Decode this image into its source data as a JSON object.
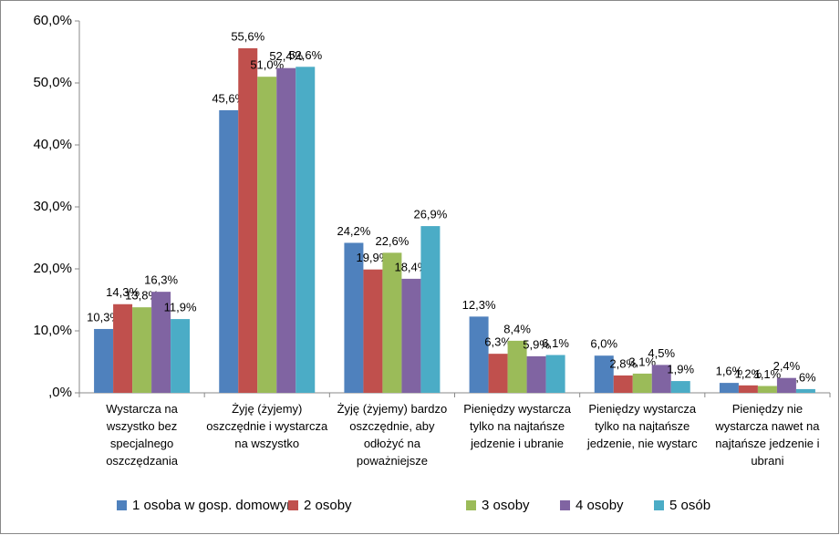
{
  "chart_data": {
    "type": "bar",
    "categories": [
      "Wystarcza na wszystko bez specjalnego oszczędzania",
      "Żyję (żyjemy) oszczędnie i wystarcza na wszystko",
      "Żyję (żyjemy) bardzo oszczędnie, aby odłożyć na poważniejsze",
      "Pieniędzy wystarcza tylko na najtańsze jedzenie i ubranie",
      "Pieniędzy wystarcza tylko na najtańsze jedzenie, nie wystarc",
      "Pieniędzy nie wystarcza nawet na najtańsze jedzenie i ubrani"
    ],
    "series": [
      {
        "name": "1 osoba w gosp. domowym",
        "color": "#4f81bd",
        "values": [
          10.3,
          45.6,
          24.2,
          12.3,
          6.0,
          1.6
        ],
        "value_labels": [
          "10,3%",
          "45,6%",
          "24,2%",
          "12,3%",
          "6,0%",
          "1,6%"
        ]
      },
      {
        "name": "2 osoby",
        "color": "#c0504d",
        "values": [
          14.3,
          55.6,
          19.9,
          6.3,
          2.8,
          1.2
        ],
        "value_labels": [
          "14,3%",
          "55,6%",
          "19,9%",
          "6,3%",
          "2,8%",
          "1,2%"
        ]
      },
      {
        "name": "3 osoby",
        "color": "#9bbb59",
        "values": [
          13.8,
          51.0,
          22.6,
          8.4,
          3.1,
          1.1
        ],
        "value_labels": [
          "13,8%",
          "51,0%",
          "22,6%",
          "8,4%",
          "3,1%",
          "1,1%"
        ]
      },
      {
        "name": "4 osoby",
        "color": "#8064a2",
        "values": [
          16.3,
          52.4,
          18.4,
          5.9,
          4.5,
          2.4
        ],
        "value_labels": [
          "16,3%",
          "52,4%",
          "18,4%",
          "5,9%",
          "4,5%",
          "2,4%"
        ]
      },
      {
        "name": "5 osób",
        "color": "#4bacc6",
        "values": [
          11.9,
          52.6,
          26.9,
          6.1,
          1.9,
          0.6
        ],
        "value_labels": [
          "11,9%",
          "52,6%",
          "26,9%",
          "6,1%",
          "1,9%",
          ",6%"
        ]
      }
    ],
    "ylim": [
      0,
      60
    ],
    "yticks": [
      {
        "value": 0,
        "label": ",0%"
      },
      {
        "value": 10,
        "label": "10,0%"
      },
      {
        "value": 20,
        "label": "20,0%"
      },
      {
        "value": 30,
        "label": "30,0%"
      },
      {
        "value": 40,
        "label": "40,0%"
      },
      {
        "value": 50,
        "label": "50,0%"
      },
      {
        "value": 60,
        "label": "60,0%"
      }
    ],
    "grid": false,
    "legend": "bottom"
  }
}
